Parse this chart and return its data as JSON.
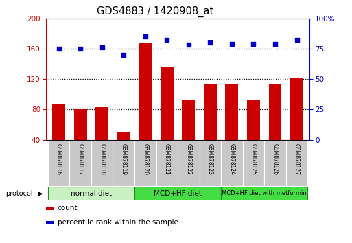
{
  "title": "GDS4883 / 1420908_at",
  "samples": [
    "GSM878116",
    "GSM878117",
    "GSM878118",
    "GSM878119",
    "GSM878120",
    "GSM878121",
    "GSM878122",
    "GSM878123",
    "GSM878124",
    "GSM878125",
    "GSM878126",
    "GSM878127"
  ],
  "counts": [
    87,
    80,
    83,
    50,
    168,
    135,
    93,
    113,
    113,
    92,
    113,
    122
  ],
  "percentile_ranks": [
    75,
    75,
    76,
    70,
    85,
    82,
    78,
    80,
    79,
    79,
    79,
    82
  ],
  "groups": [
    {
      "label": "normal diet",
      "start": 0,
      "end": 4,
      "color": "#c8f0c0"
    },
    {
      "label": "MCD+HF diet",
      "start": 4,
      "end": 8,
      "color": "#44dd44"
    },
    {
      "label": "MCD+HF diet with metformin",
      "start": 8,
      "end": 12,
      "color": "#44dd44"
    }
  ],
  "ylim_left": [
    40,
    200
  ],
  "ylim_right": [
    0,
    100
  ],
  "bar_color": "#cc0000",
  "dot_color": "#0000cc",
  "bg_color": "#ffffff",
  "label_bg": "#c8c8c8",
  "grid_yticks": [
    80,
    120,
    160
  ],
  "left_yticks": [
    40,
    80,
    120,
    160,
    200
  ],
  "right_yticks": [
    0,
    25,
    50,
    75,
    100
  ],
  "right_yticklabels": [
    "0",
    "25",
    "50",
    "75",
    "100%"
  ]
}
